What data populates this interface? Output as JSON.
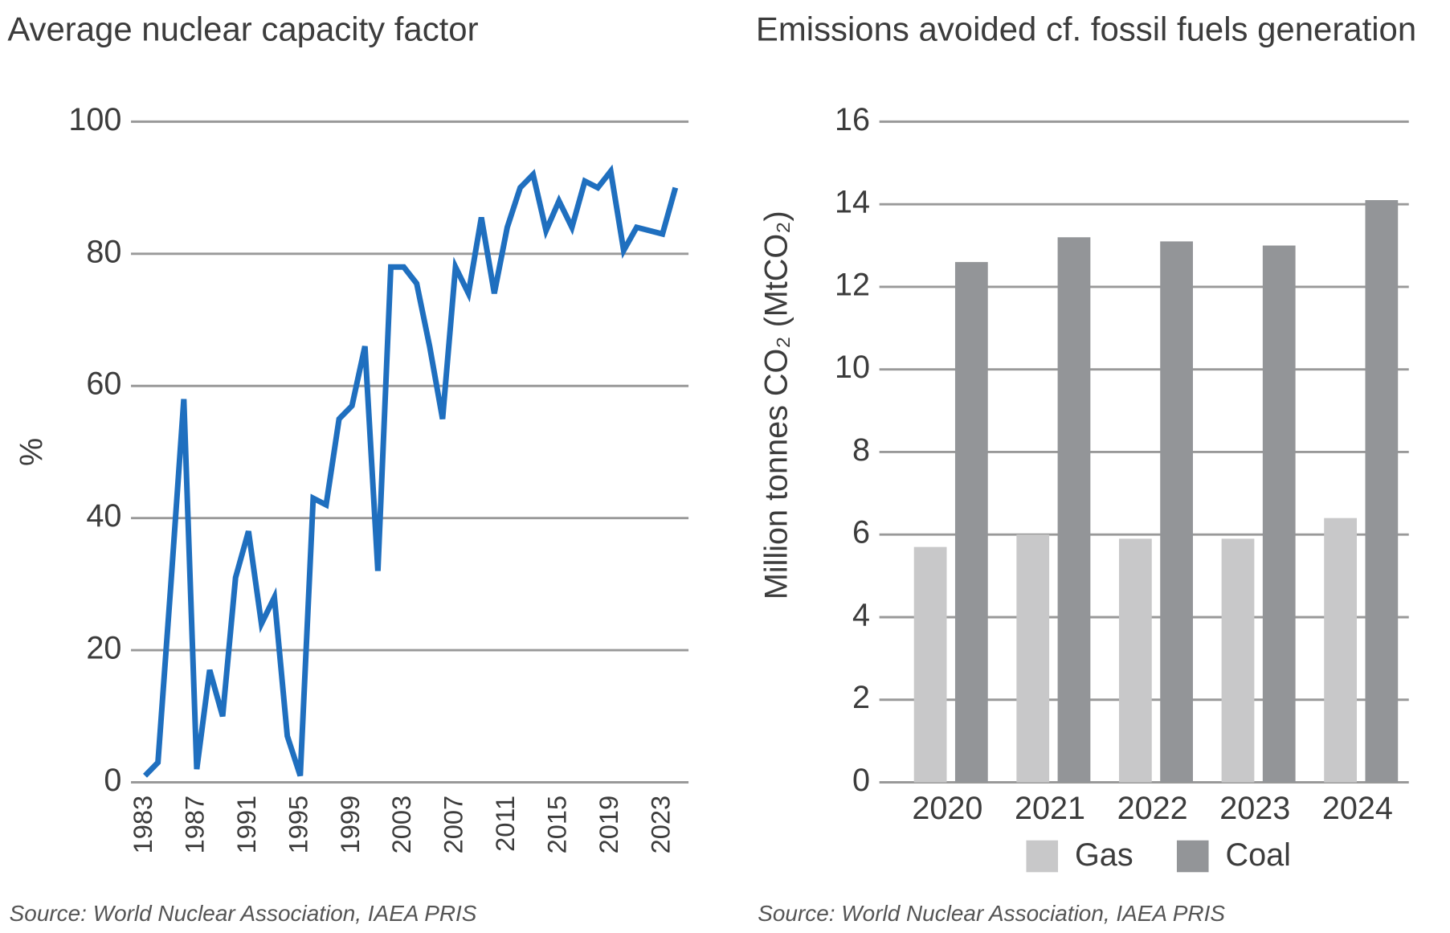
{
  "chart_data": [
    {
      "type": "line",
      "title": "Average nuclear capacity factor",
      "y_label": "%",
      "x": [
        1983,
        1984,
        1985,
        1986,
        1987,
        1988,
        1989,
        1990,
        1991,
        1992,
        1993,
        1994,
        1995,
        1996,
        1997,
        1998,
        1999,
        2000,
        2001,
        2002,
        2003,
        2004,
        2005,
        2006,
        2007,
        2008,
        2009,
        2010,
        2011,
        2012,
        2013,
        2014,
        2015,
        2016,
        2017,
        2018,
        2019,
        2020,
        2021,
        2022,
        2023,
        2024
      ],
      "series": [
        {
          "name": "Capacity factor",
          "color": "#1f6fbf",
          "values": [
            1,
            3,
            30,
            58,
            2,
            17,
            10,
            31,
            38,
            24,
            28,
            7,
            1,
            43,
            42,
            55,
            57,
            66,
            32,
            78,
            78,
            75.5,
            66,
            55,
            78,
            74,
            85.5,
            74,
            84,
            90,
            92,
            83.5,
            88,
            84,
            91,
            90,
            92.5,
            80.5,
            84,
            83.5,
            83,
            90
          ]
        }
      ],
      "xlim": [
        1983,
        2024
      ],
      "xticks": [
        1983,
        1987,
        1991,
        1995,
        1999,
        2003,
        2007,
        2011,
        2015,
        2019,
        2023
      ],
      "ylim": [
        0,
        100
      ],
      "yticks": [
        0,
        20,
        40,
        60,
        80,
        100
      ],
      "grid": true,
      "source": "Source: World Nuclear Association, IAEA PRIS"
    },
    {
      "type": "bar",
      "title": "Emissions avoided cf. fossil fuels generation",
      "y_label": "Million tonnes CO₂ (MtCO₂)",
      "categories": [
        "2020",
        "2021",
        "2022",
        "2023",
        "2024"
      ],
      "series": [
        {
          "name": "Gas",
          "color": "#c8c8c9",
          "values": [
            5.7,
            6.0,
            5.9,
            5.9,
            6.4
          ]
        },
        {
          "name": "Coal",
          "color": "#939598",
          "values": [
            12.6,
            13.2,
            13.1,
            13.0,
            14.1
          ]
        }
      ],
      "ylim": [
        0,
        16
      ],
      "yticks": [
        0,
        2,
        4,
        6,
        8,
        10,
        12,
        14,
        16
      ],
      "grid": true,
      "legend": "bottom",
      "source": "Source: World Nuclear Association, IAEA PRIS"
    }
  ]
}
